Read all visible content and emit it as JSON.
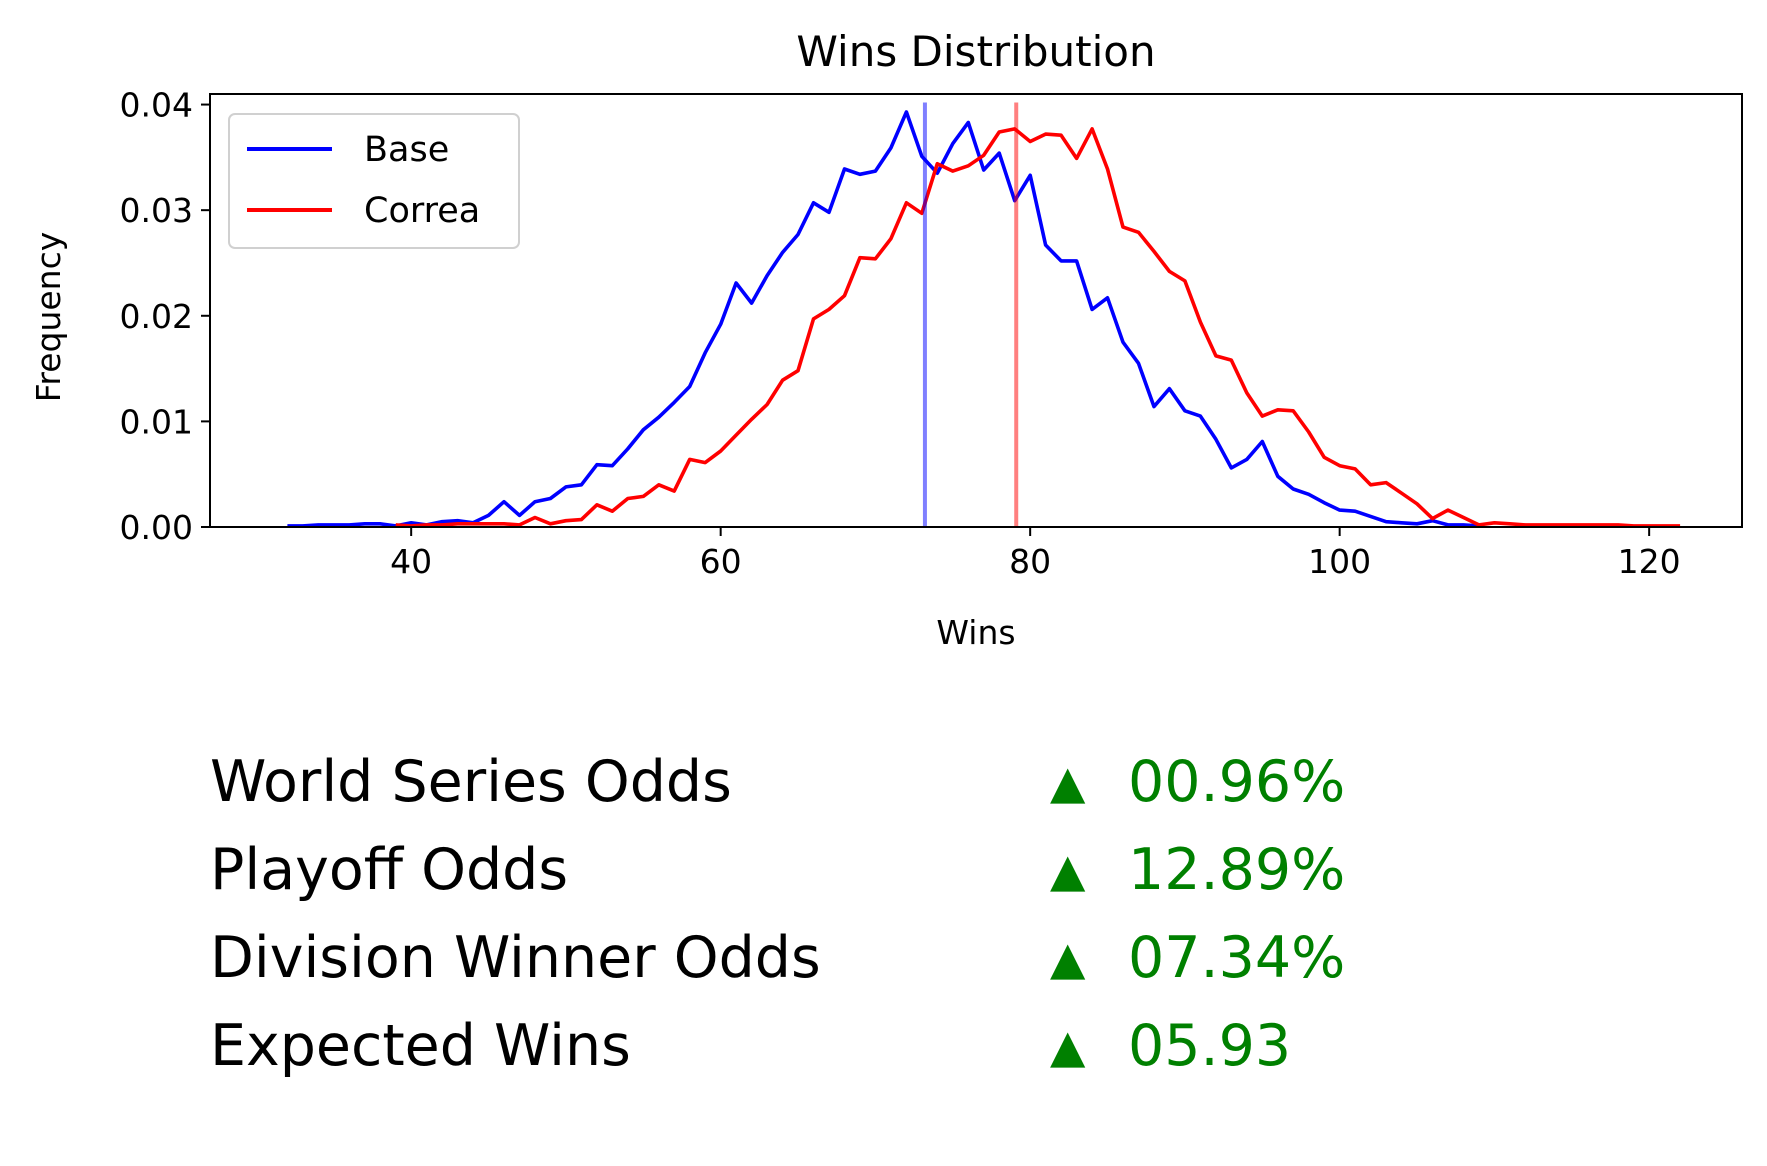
{
  "chart_data": {
    "type": "line",
    "title": "Wins Distribution",
    "xlabel": "Wins",
    "ylabel": "Frequency",
    "xlim": [
      27,
      126
    ],
    "ylim": [
      0,
      0.041
    ],
    "xticks": [
      40,
      60,
      80,
      100,
      120
    ],
    "yticks": [
      0.0,
      0.01,
      0.02,
      0.03,
      0.04
    ],
    "xtick_labels": [
      "40",
      "60",
      "80",
      "100",
      "120"
    ],
    "ytick_labels": [
      "0.00",
      "0.01",
      "0.02",
      "0.03",
      "0.04"
    ],
    "grid": false,
    "legend_position": "upper-left",
    "series": [
      {
        "name": "Base",
        "color": "#0000ff",
        "x": [
          32,
          33,
          34,
          35,
          36,
          37,
          38,
          39,
          40,
          41,
          42,
          43,
          44,
          45,
          46,
          47,
          48,
          49,
          50,
          51,
          52,
          53,
          54,
          55,
          56,
          57,
          58,
          59,
          60,
          61,
          62,
          63,
          64,
          65,
          66,
          67,
          68,
          69,
          70,
          71,
          72,
          73,
          74,
          75,
          76,
          77,
          78,
          79,
          80,
          81,
          82,
          83,
          84,
          85,
          86,
          87,
          88,
          89,
          90,
          91,
          92,
          93,
          94,
          95,
          96,
          97,
          98,
          99,
          100,
          101,
          102,
          103,
          104,
          105,
          106,
          107,
          108,
          109
        ],
        "y": [
          0.0001,
          0.0001,
          0.0002,
          0.0002,
          0.0002,
          0.0003,
          0.0003,
          0.0001,
          0.0004,
          0.0002,
          0.0005,
          0.0006,
          0.0004,
          0.0011,
          0.0024,
          0.0011,
          0.0024,
          0.0027,
          0.0038,
          0.004,
          0.0059,
          0.0058,
          0.0074,
          0.0092,
          0.0104,
          0.0118,
          0.0133,
          0.0165,
          0.0192,
          0.0231,
          0.0212,
          0.0238,
          0.026,
          0.0277,
          0.0307,
          0.0298,
          0.0339,
          0.0334,
          0.0337,
          0.0359,
          0.0393,
          0.0351,
          0.0335,
          0.0363,
          0.0383,
          0.0338,
          0.0354,
          0.0309,
          0.0333,
          0.0267,
          0.0252,
          0.0252,
          0.0206,
          0.0217,
          0.0175,
          0.0155,
          0.0114,
          0.0131,
          0.011,
          0.0105,
          0.0083,
          0.0056,
          0.0064,
          0.0081,
          0.0048,
          0.0036,
          0.0031,
          0.0023,
          0.0016,
          0.0015,
          0.001,
          0.0005,
          0.0004,
          0.0003,
          0.0006,
          0.0002,
          0.0002,
          0.0001
        ]
      },
      {
        "name": "Correa",
        "color": "#ff0000",
        "x": [
          39,
          40,
          41,
          42,
          43,
          44,
          45,
          46,
          47,
          48,
          49,
          50,
          51,
          52,
          53,
          54,
          55,
          56,
          57,
          58,
          59,
          60,
          61,
          62,
          63,
          64,
          65,
          66,
          67,
          68,
          69,
          70,
          71,
          72,
          73,
          74,
          75,
          76,
          77,
          78,
          79,
          80,
          81,
          82,
          83,
          84,
          85,
          86,
          87,
          88,
          89,
          90,
          91,
          92,
          93,
          94,
          95,
          96,
          97,
          98,
          99,
          100,
          101,
          102,
          103,
          104,
          105,
          106,
          107,
          108,
          109,
          110,
          111,
          112,
          113,
          114,
          115,
          116,
          117,
          118,
          119,
          120,
          121,
          122
        ],
        "y": [
          0.0002,
          0.0001,
          0.0002,
          0.0002,
          0.0003,
          0.0003,
          0.0003,
          0.0003,
          0.0002,
          0.0009,
          0.0003,
          0.0006,
          0.0007,
          0.0021,
          0.0015,
          0.0027,
          0.0029,
          0.004,
          0.0034,
          0.0064,
          0.0061,
          0.0072,
          0.0087,
          0.0102,
          0.0116,
          0.0139,
          0.0148,
          0.0197,
          0.0206,
          0.0219,
          0.0255,
          0.0254,
          0.0273,
          0.0307,
          0.0297,
          0.0344,
          0.0337,
          0.0342,
          0.0352,
          0.0374,
          0.0377,
          0.0365,
          0.0372,
          0.0371,
          0.0349,
          0.0377,
          0.0339,
          0.0284,
          0.0279,
          0.0261,
          0.0242,
          0.0233,
          0.0194,
          0.0162,
          0.0158,
          0.0127,
          0.0105,
          0.0111,
          0.011,
          0.009,
          0.0066,
          0.0058,
          0.0055,
          0.004,
          0.0042,
          0.0032,
          0.0022,
          0.0008,
          0.0016,
          0.0009,
          0.0002,
          0.0004,
          0.0003,
          0.0002,
          0.0002,
          0.0002,
          0.0002,
          0.0002,
          0.0002,
          0.0002,
          0.0001,
          0.0001,
          0.0001,
          0.0001
        ]
      }
    ],
    "vlines": [
      {
        "x": 73.2,
        "color": "#0000ff",
        "alpha": 0.5
      },
      {
        "x": 79.1,
        "color": "#ff0000",
        "alpha": 0.5
      }
    ]
  },
  "stats": [
    {
      "label": "World Series Odds",
      "arrow": "▲",
      "value": "00.96%"
    },
    {
      "label": "Playoff Odds",
      "arrow": "▲",
      "value": "12.89%"
    },
    {
      "label": "Division Winner Odds",
      "arrow": "▲",
      "value": "07.34%"
    },
    {
      "label": "Expected Wins",
      "arrow": "▲",
      "value": "05.93"
    }
  ],
  "colors": {
    "positive": "#008000"
  }
}
